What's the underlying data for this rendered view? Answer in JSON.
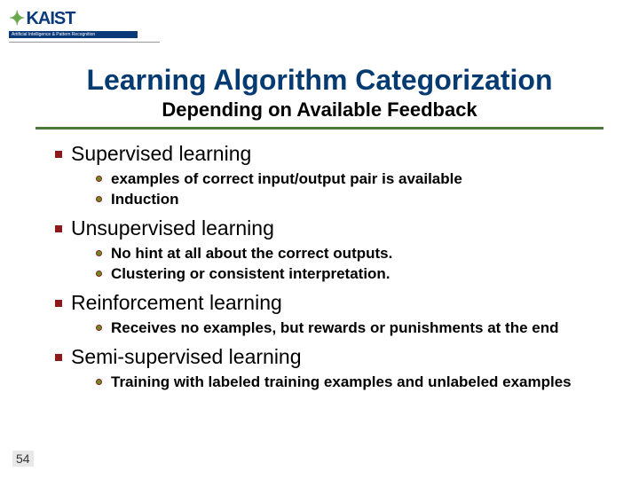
{
  "logo": {
    "text": "KAIST",
    "tagline": "Artificial Intelligence & Pattern Recognition"
  },
  "title": "Learning Algorithm Categorization",
  "subtitle": "Depending on Available Feedback",
  "colors": {
    "title": "#063b72",
    "bullet_primary": "#8b1a1a",
    "bullet_secondary": "#6b8e23",
    "rule": "#4a7a3a",
    "logo_blue": "#0a3a7a"
  },
  "sections": [
    {
      "heading": "Supervised learning",
      "items": [
        "examples of correct input/output pair is available",
        "Induction"
      ]
    },
    {
      "heading": "Unsupervised learning",
      "items": [
        "No hint at all about the correct outputs.",
        "Clustering or consistent interpretation."
      ]
    },
    {
      "heading": "Reinforcement learning",
      "items": [
        "Receives no examples, but rewards or punishments at the end"
      ]
    },
    {
      "heading": "Semi-supervised learning",
      "items": [
        "Training with labeled training examples and unlabeled examples"
      ]
    }
  ],
  "page_number": "54"
}
